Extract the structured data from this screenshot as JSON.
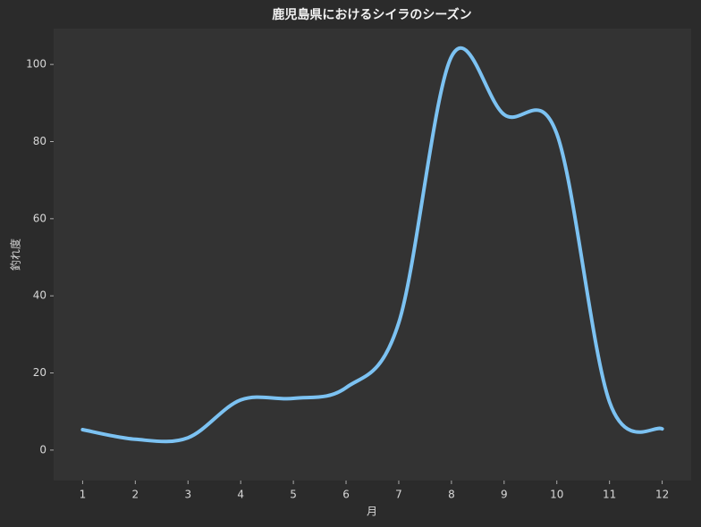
{
  "chart_data": {
    "type": "line",
    "title": "鹿児島県におけるシイラのシーズン",
    "x_label": "月",
    "y_label": "釣れ度",
    "x": [
      1,
      2,
      3,
      4,
      5,
      6,
      7,
      8,
      9,
      10,
      11,
      12
    ],
    "series": [
      {
        "color": "#7cc2f2",
        "values": [
          5.3,
          2.8,
          3.2,
          13,
          13.4,
          16.2,
          33,
          102,
          87,
          82,
          12.5,
          5.5
        ]
      }
    ],
    "xlim": [
      0.45,
      12.55
    ],
    "ylim": [
      -7.9,
      109.3
    ],
    "xticks": [
      1,
      2,
      3,
      4,
      5,
      6,
      7,
      8,
      9,
      10,
      11,
      12
    ],
    "yticks": [
      0,
      20,
      40,
      60,
      80,
      100
    ],
    "grid": false
  }
}
